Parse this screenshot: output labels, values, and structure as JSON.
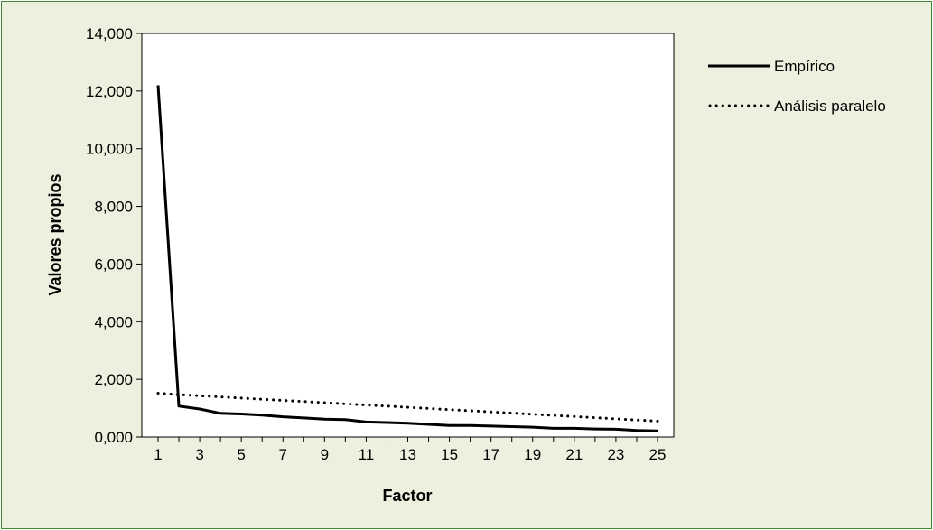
{
  "chart_data": {
    "type": "line",
    "title": "",
    "xlabel": "Factor",
    "ylabel": "Valores propios",
    "x": [
      1,
      2,
      3,
      4,
      5,
      6,
      7,
      8,
      9,
      10,
      11,
      12,
      13,
      14,
      15,
      16,
      17,
      18,
      19,
      20,
      21,
      22,
      23,
      24,
      25
    ],
    "xticks": [
      "1",
      "3",
      "5",
      "7",
      "9",
      "11",
      "13",
      "15",
      "17",
      "19",
      "21",
      "23",
      "25"
    ],
    "yticks": [
      "0,000",
      "2,000",
      "4,000",
      "6,000",
      "8,000",
      "10,000",
      "12,000",
      "14,000"
    ],
    "ylim": [
      0,
      14
    ],
    "xlim": [
      1,
      25
    ],
    "grid": false,
    "legend_position": "right",
    "series": [
      {
        "name": "Empírico",
        "style": "solid",
        "color": "#000000",
        "values": [
          12.2,
          1.07,
          0.97,
          0.82,
          0.8,
          0.76,
          0.7,
          0.66,
          0.62,
          0.6,
          0.52,
          0.5,
          0.48,
          0.44,
          0.4,
          0.4,
          0.38,
          0.36,
          0.34,
          0.3,
          0.3,
          0.28,
          0.27,
          0.23,
          0.21
        ]
      },
      {
        "name": "Análisis paralelo",
        "style": "dotted",
        "color": "#000000",
        "values": [
          1.52,
          1.47,
          1.43,
          1.39,
          1.35,
          1.31,
          1.27,
          1.23,
          1.19,
          1.15,
          1.11,
          1.07,
          1.03,
          0.99,
          0.95,
          0.91,
          0.87,
          0.83,
          0.79,
          0.75,
          0.71,
          0.67,
          0.63,
          0.59,
          0.55
        ]
      }
    ]
  },
  "colors": {
    "background": "#ebf1de",
    "border": "#3c8a2e",
    "plot_area": "#ffffff"
  }
}
